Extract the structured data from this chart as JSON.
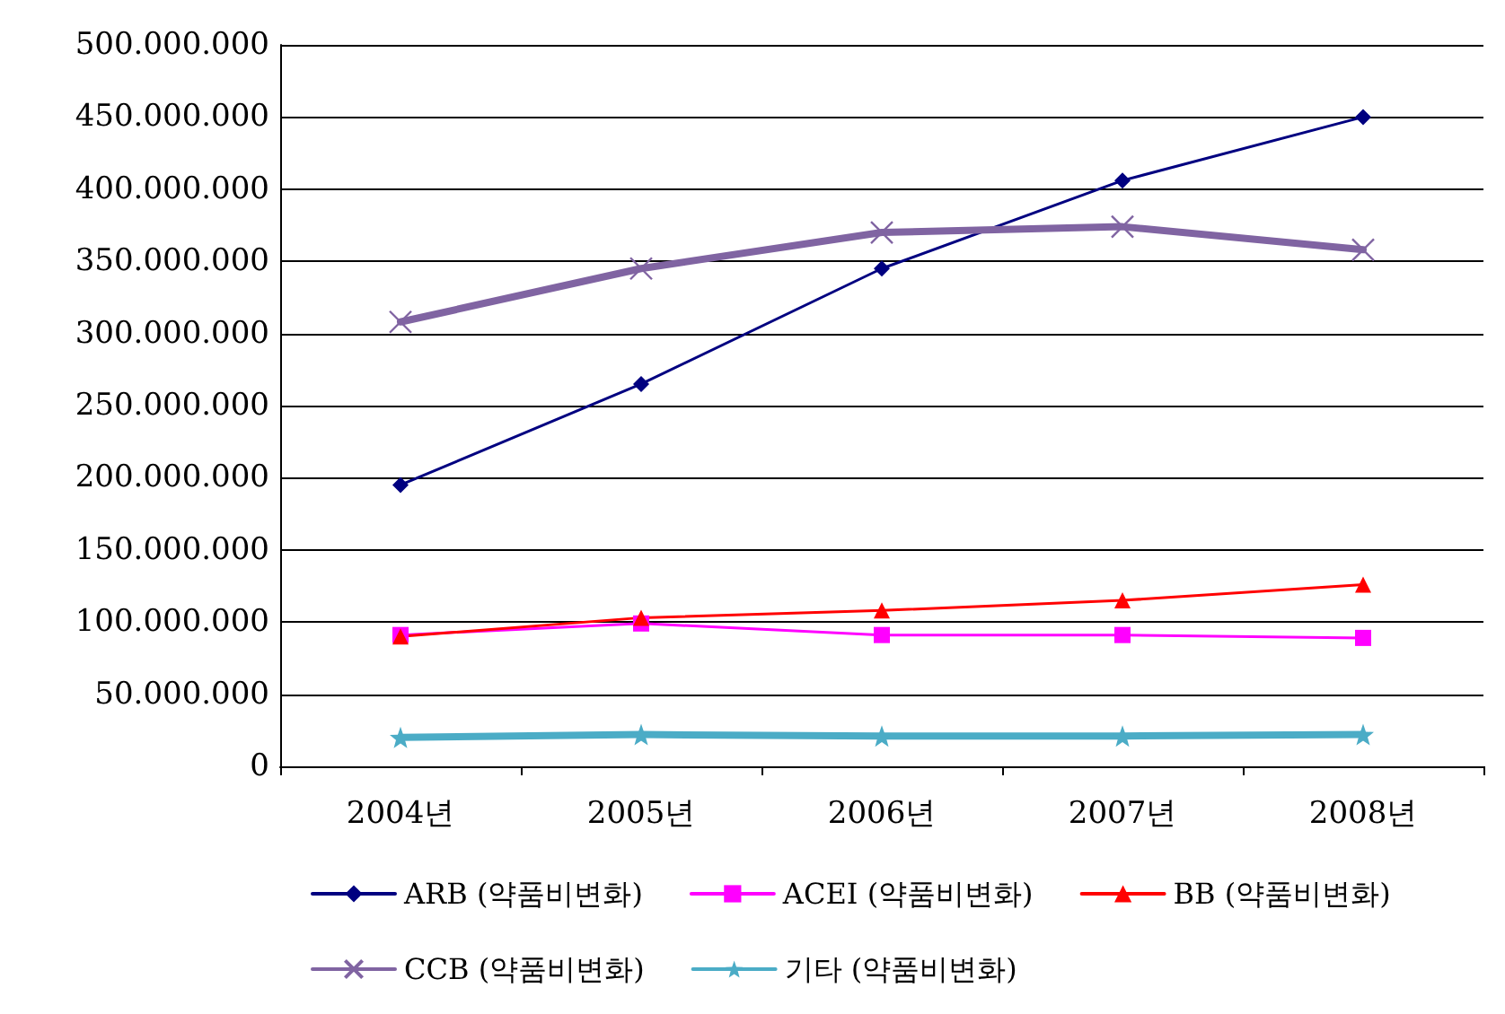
{
  "chart_data": {
    "type": "line",
    "categories": [
      "2004년",
      "2005년",
      "2006년",
      "2007년",
      "2008년"
    ],
    "series": [
      {
        "name": "ARB (약품비변화)",
        "color": "#000080",
        "marker": "diamond",
        "values": [
          195000000,
          265000000,
          345000000,
          406000000,
          450000000
        ]
      },
      {
        "name": "ACEI (약품비변화)",
        "color": "#ff00ff",
        "marker": "square",
        "values": [
          91000000,
          99000000,
          91000000,
          91000000,
          89000000
        ]
      },
      {
        "name": "BB (약품비변화)",
        "color": "#ff0000",
        "marker": "triangle",
        "values": [
          90000000,
          103000000,
          108000000,
          115000000,
          126000000
        ]
      },
      {
        "name": "CCB (약품비변화)",
        "color": "#8064a2",
        "marker": "cross",
        "values": [
          308000000,
          345000000,
          370000000,
          374000000,
          358000000
        ]
      },
      {
        "name": "기타 (약품비변화)",
        "color": "#4bacc6",
        "marker": "star",
        "values": [
          20000000,
          22000000,
          21000000,
          21000000,
          22000000
        ]
      }
    ],
    "ylim": [
      0,
      500000000
    ],
    "yticks": [
      {
        "value": 0,
        "label": "0"
      },
      {
        "value": 50000000,
        "label": "50.000.000"
      },
      {
        "value": 100000000,
        "label": "100.000.000"
      },
      {
        "value": 150000000,
        "label": "150.000.000"
      },
      {
        "value": 200000000,
        "label": "200.000.000"
      },
      {
        "value": 250000000,
        "label": "250.000.000"
      },
      {
        "value": 300000000,
        "label": "300.000.000"
      },
      {
        "value": 350000000,
        "label": "350.000.000"
      },
      {
        "value": 400000000,
        "label": "400.000.000"
      },
      {
        "value": 450000000,
        "label": "450.000.000"
      },
      {
        "value": 500000000,
        "label": "500.000.000"
      }
    ],
    "grid": "y",
    "legend": "bottom"
  }
}
